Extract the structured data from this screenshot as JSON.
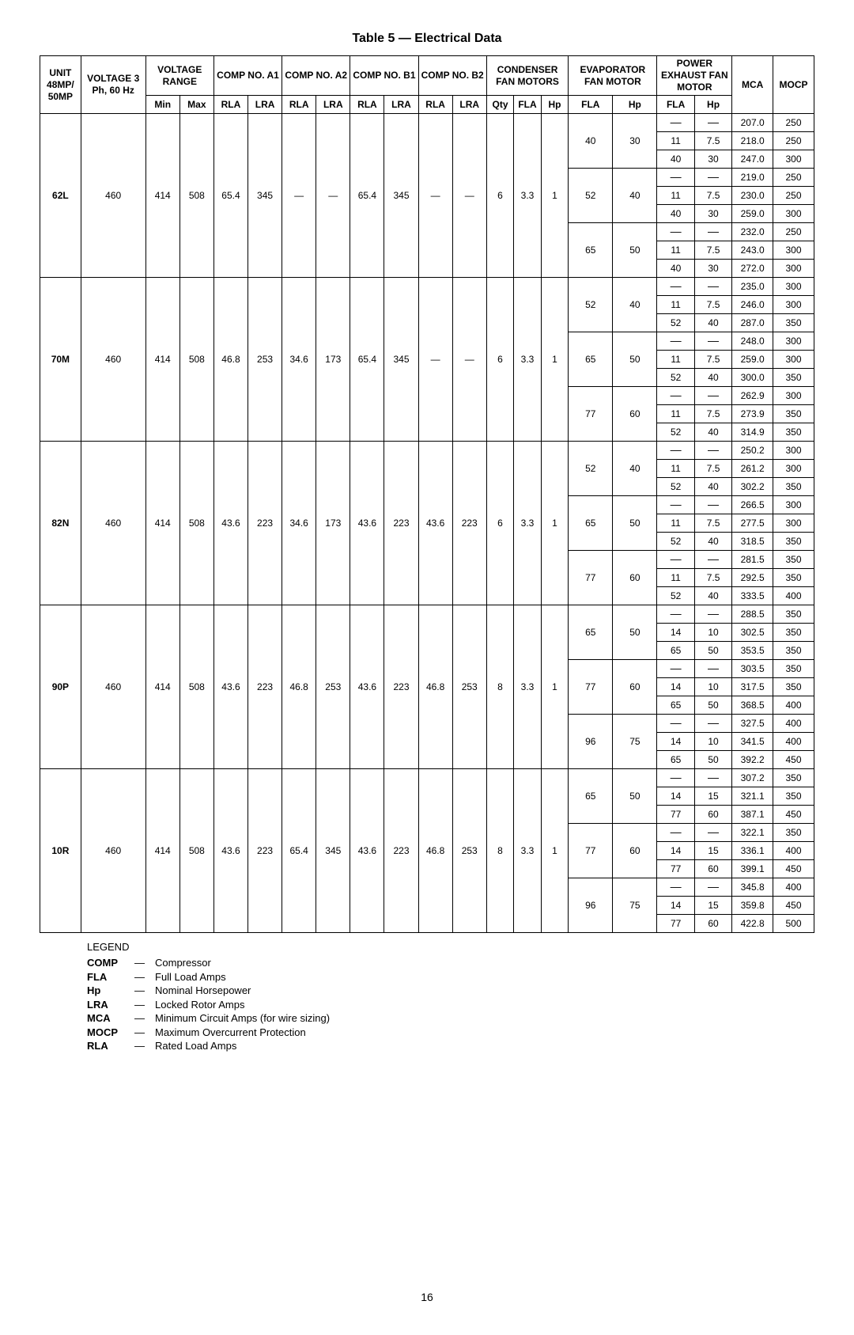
{
  "title": "Table 5 — Electrical Data",
  "page_number": "16",
  "dash": "—",
  "headers": {
    "unit": "UNIT 48MP/ 50MP",
    "voltage": "VOLTAGE 3 Ph, 60 Hz",
    "voltage_range": "VOLTAGE RANGE",
    "comp_a1": "COMP NO. A1",
    "comp_a2": "COMP NO. A2",
    "comp_b1": "COMP NO. B1",
    "comp_b2": "COMP NO. B2",
    "cond": "CONDENSER FAN MOTORS",
    "evap": "EVAPORATOR FAN MOTOR",
    "pe": "POWER EXHAUST FAN MOTOR",
    "mca": "MCA",
    "mocp": "MOCP",
    "min": "Min",
    "max": "Max",
    "rla": "RLA",
    "lra": "LRA",
    "qty": "Qty",
    "fla": "FLA",
    "hp": "Hp"
  },
  "units": [
    {
      "unit": "62L",
      "voltage": "460",
      "vmin": "414",
      "vmax": "508",
      "a1_rla": "65.4",
      "a1_lra": "345",
      "a2_rla": "—",
      "a2_lra": "—",
      "b1_rla": "65.4",
      "b1_lra": "345",
      "b2_rla": "—",
      "b2_lra": "—",
      "c_qty": "6",
      "c_fla": "3.3",
      "c_hp": "1",
      "evap_groups": [
        {
          "efla": "40",
          "ehp": "30",
          "rows": [
            {
              "pfla": "—",
              "php": "—",
              "mca": "207.0",
              "mocp": "250"
            },
            {
              "pfla": "11",
              "php": "7.5",
              "mca": "218.0",
              "mocp": "250"
            },
            {
              "pfla": "40",
              "php": "30",
              "mca": "247.0",
              "mocp": "300"
            }
          ]
        },
        {
          "efla": "52",
          "ehp": "40",
          "rows": [
            {
              "pfla": "—",
              "php": "—",
              "mca": "219.0",
              "mocp": "250"
            },
            {
              "pfla": "11",
              "php": "7.5",
              "mca": "230.0",
              "mocp": "250"
            },
            {
              "pfla": "40",
              "php": "30",
              "mca": "259.0",
              "mocp": "300"
            }
          ]
        },
        {
          "efla": "65",
          "ehp": "50",
          "rows": [
            {
              "pfla": "—",
              "php": "—",
              "mca": "232.0",
              "mocp": "250"
            },
            {
              "pfla": "11",
              "php": "7.5",
              "mca": "243.0",
              "mocp": "300"
            },
            {
              "pfla": "40",
              "php": "30",
              "mca": "272.0",
              "mocp": "300"
            }
          ]
        }
      ]
    },
    {
      "unit": "70M",
      "voltage": "460",
      "vmin": "414",
      "vmax": "508",
      "a1_rla": "46.8",
      "a1_lra": "253",
      "a2_rla": "34.6",
      "a2_lra": "173",
      "b1_rla": "65.4",
      "b1_lra": "345",
      "b2_rla": "—",
      "b2_lra": "—",
      "c_qty": "6",
      "c_fla": "3.3",
      "c_hp": "1",
      "evap_groups": [
        {
          "efla": "52",
          "ehp": "40",
          "rows": [
            {
              "pfla": "—",
              "php": "—",
              "mca": "235.0",
              "mocp": "300"
            },
            {
              "pfla": "11",
              "php": "7.5",
              "mca": "246.0",
              "mocp": "300"
            },
            {
              "pfla": "52",
              "php": "40",
              "mca": "287.0",
              "mocp": "350"
            }
          ]
        },
        {
          "efla": "65",
          "ehp": "50",
          "rows": [
            {
              "pfla": "—",
              "php": "—",
              "mca": "248.0",
              "mocp": "300"
            },
            {
              "pfla": "11",
              "php": "7.5",
              "mca": "259.0",
              "mocp": "300"
            },
            {
              "pfla": "52",
              "php": "40",
              "mca": "300.0",
              "mocp": "350"
            }
          ]
        },
        {
          "efla": "77",
          "ehp": "60",
          "rows": [
            {
              "pfla": "—",
              "php": "—",
              "mca": "262.9",
              "mocp": "300"
            },
            {
              "pfla": "11",
              "php": "7.5",
              "mca": "273.9",
              "mocp": "350"
            },
            {
              "pfla": "52",
              "php": "40",
              "mca": "314.9",
              "mocp": "350"
            }
          ]
        }
      ]
    },
    {
      "unit": "82N",
      "voltage": "460",
      "vmin": "414",
      "vmax": "508",
      "a1_rla": "43.6",
      "a1_lra": "223",
      "a2_rla": "34.6",
      "a2_lra": "173",
      "b1_rla": "43.6",
      "b1_lra": "223",
      "b2_rla": "43.6",
      "b2_lra": "223",
      "c_qty": "6",
      "c_fla": "3.3",
      "c_hp": "1",
      "evap_groups": [
        {
          "efla": "52",
          "ehp": "40",
          "rows": [
            {
              "pfla": "—",
              "php": "—",
              "mca": "250.2",
              "mocp": "300"
            },
            {
              "pfla": "11",
              "php": "7.5",
              "mca": "261.2",
              "mocp": "300"
            },
            {
              "pfla": "52",
              "php": "40",
              "mca": "302.2",
              "mocp": "350"
            }
          ]
        },
        {
          "efla": "65",
          "ehp": "50",
          "rows": [
            {
              "pfla": "—",
              "php": "—",
              "mca": "266.5",
              "mocp": "300"
            },
            {
              "pfla": "11",
              "php": "7.5",
              "mca": "277.5",
              "mocp": "300"
            },
            {
              "pfla": "52",
              "php": "40",
              "mca": "318.5",
              "mocp": "350"
            }
          ]
        },
        {
          "efla": "77",
          "ehp": "60",
          "rows": [
            {
              "pfla": "—",
              "php": "—",
              "mca": "281.5",
              "mocp": "350"
            },
            {
              "pfla": "11",
              "php": "7.5",
              "mca": "292.5",
              "mocp": "350"
            },
            {
              "pfla": "52",
              "php": "40",
              "mca": "333.5",
              "mocp": "400"
            }
          ]
        }
      ]
    },
    {
      "unit": "90P",
      "voltage": "460",
      "vmin": "414",
      "vmax": "508",
      "a1_rla": "43.6",
      "a1_lra": "223",
      "a2_rla": "46.8",
      "a2_lra": "253",
      "b1_rla": "43.6",
      "b1_lra": "223",
      "b2_rla": "46.8",
      "b2_lra": "253",
      "c_qty": "8",
      "c_fla": "3.3",
      "c_hp": "1",
      "evap_groups": [
        {
          "efla": "65",
          "ehp": "50",
          "rows": [
            {
              "pfla": "—",
              "php": "—",
              "mca": "288.5",
              "mocp": "350"
            },
            {
              "pfla": "14",
              "php": "10",
              "mca": "302.5",
              "mocp": "350"
            },
            {
              "pfla": "65",
              "php": "50",
              "mca": "353.5",
              "mocp": "350"
            }
          ]
        },
        {
          "efla": "77",
          "ehp": "60",
          "rows": [
            {
              "pfla": "—",
              "php": "—",
              "mca": "303.5",
              "mocp": "350"
            },
            {
              "pfla": "14",
              "php": "10",
              "mca": "317.5",
              "mocp": "350"
            },
            {
              "pfla": "65",
              "php": "50",
              "mca": "368.5",
              "mocp": "400"
            }
          ]
        },
        {
          "efla": "96",
          "ehp": "75",
          "rows": [
            {
              "pfla": "—",
              "php": "—",
              "mca": "327.5",
              "mocp": "400"
            },
            {
              "pfla": "14",
              "php": "10",
              "mca": "341.5",
              "mocp": "400"
            },
            {
              "pfla": "65",
              "php": "50",
              "mca": "392.2",
              "mocp": "450"
            }
          ]
        }
      ]
    },
    {
      "unit": "10R",
      "voltage": "460",
      "vmin": "414",
      "vmax": "508",
      "a1_rla": "43.6",
      "a1_lra": "223",
      "a2_rla": "65.4",
      "a2_lra": "345",
      "b1_rla": "43.6",
      "b1_lra": "223",
      "b2_rla": "46.8",
      "b2_lra": "253",
      "c_qty": "8",
      "c_fla": "3.3",
      "c_hp": "1",
      "evap_groups": [
        {
          "efla": "65",
          "ehp": "50",
          "rows": [
            {
              "pfla": "—",
              "php": "—",
              "mca": "307.2",
              "mocp": "350"
            },
            {
              "pfla": "14",
              "php": "15",
              "mca": "321.1",
              "mocp": "350"
            },
            {
              "pfla": "77",
              "php": "60",
              "mca": "387.1",
              "mocp": "450"
            }
          ]
        },
        {
          "efla": "77",
          "ehp": "60",
          "rows": [
            {
              "pfla": "—",
              "php": "—",
              "mca": "322.1",
              "mocp": "350"
            },
            {
              "pfla": "14",
              "php": "15",
              "mca": "336.1",
              "mocp": "400"
            },
            {
              "pfla": "77",
              "php": "60",
              "mca": "399.1",
              "mocp": "450"
            }
          ]
        },
        {
          "efla": "96",
          "ehp": "75",
          "rows": [
            {
              "pfla": "—",
              "php": "—",
              "mca": "345.8",
              "mocp": "400"
            },
            {
              "pfla": "14",
              "php": "15",
              "mca": "359.8",
              "mocp": "450"
            },
            {
              "pfla": "77",
              "php": "60",
              "mca": "422.8",
              "mocp": "500"
            }
          ]
        }
      ]
    }
  ],
  "legend": {
    "title": "LEGEND",
    "items": [
      {
        "abbr": "COMP",
        "def": "Compressor"
      },
      {
        "abbr": "FLA",
        "def": "Full Load Amps"
      },
      {
        "abbr": "Hp",
        "def": "Nominal Horsepower"
      },
      {
        "abbr": "LRA",
        "def": "Locked Rotor Amps"
      },
      {
        "abbr": "MCA",
        "def": "Minimum Circuit Amps (for wire sizing)"
      },
      {
        "abbr": "MOCP",
        "def": "Maximum Overcurrent Protection"
      },
      {
        "abbr": "RLA",
        "def": "Rated Load Amps"
      }
    ]
  }
}
